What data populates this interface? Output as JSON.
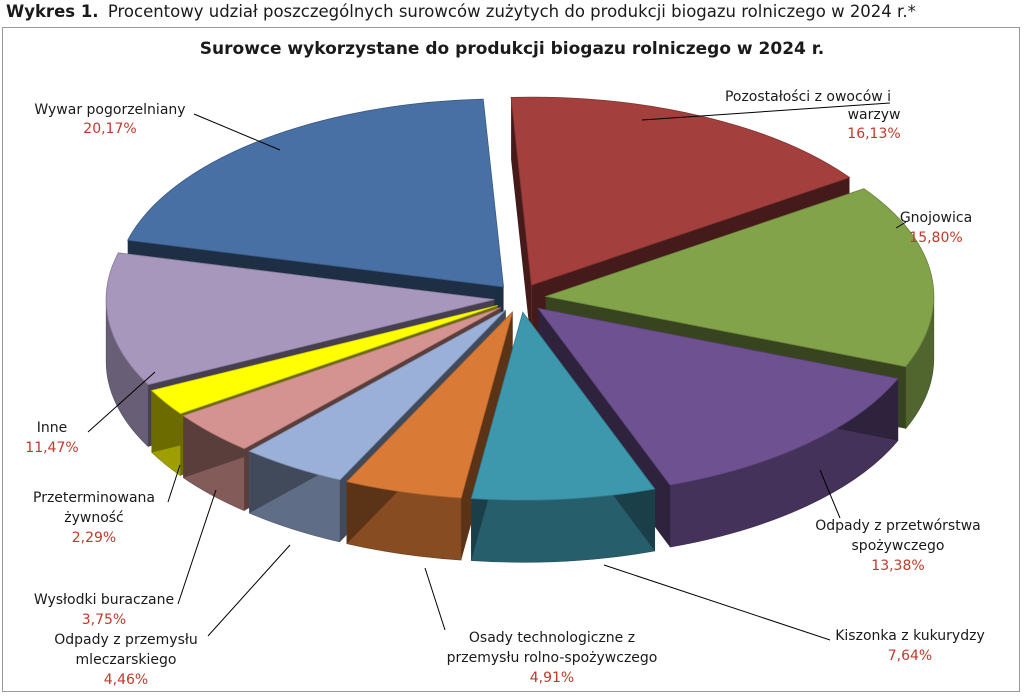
{
  "caption": {
    "lead": "Wykres 1.",
    "text": "Procentowy udział poszczególnych surowców zużytych do produkcji biogazu rolniczego w 2024 r.*"
  },
  "chart_data": {
    "type": "pie",
    "title": "Surowce wykorzystane do produkcji biogazu rolniczego w 2024 r.",
    "slices": [
      {
        "label": "Pozostałości z owoców i warzyw",
        "value": 16.13,
        "value_label": "16,13%",
        "color": "#a33f3d"
      },
      {
        "label": "Gnojowica",
        "value": 15.8,
        "value_label": "15,80%",
        "color": "#83a34a"
      },
      {
        "label": "Odpady z przetwórstwa spożywczego",
        "value": 13.38,
        "value_label": "13,38%",
        "color": "#6e5191"
      },
      {
        "label": "Kiszonka z kukurydzy",
        "value": 7.64,
        "value_label": "7,64%",
        "color": "#3d97ad"
      },
      {
        "label": "Osady technologiczne z przemysłu rolno-spożywczego",
        "value": 4.91,
        "value_label": "4,91%",
        "color": "#d97b36"
      },
      {
        "label": "Odpady z przemysłu mleczarskiego",
        "value": 4.46,
        "value_label": "4,46%",
        "color": "#9bb0d8"
      },
      {
        "label": "Wysłodki buraczane",
        "value": 3.75,
        "value_label": "3,75%",
        "color": "#d49390"
      },
      {
        "label": "Przeterminowana żywność",
        "value": 2.29,
        "value_label": "2,29%",
        "color": "#ffff00"
      },
      {
        "label": "Inne",
        "value": 11.47,
        "value_label": "11,47%",
        "color": "#a797bd"
      },
      {
        "label": "Wywar pogorzelniany",
        "value": 20.17,
        "value_label": "20,17%",
        "color": "#4870a5"
      }
    ]
  }
}
